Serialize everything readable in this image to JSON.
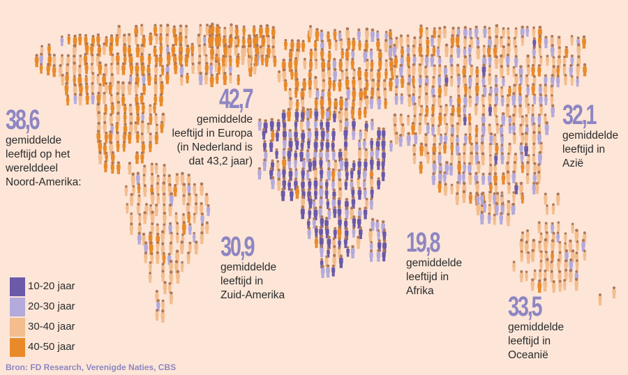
{
  "colors": {
    "background": "#fde6d8",
    "age_10_20": "#6a5aa8",
    "age_20_30": "#b4aadb",
    "age_30_40": "#f3bd8e",
    "age_40_50": "#e98a2a",
    "figure_number": "#8e86c2"
  },
  "regions": [
    {
      "id": "noord-amerika",
      "value": "38,6",
      "text": "gemiddelde\nleeftijd op het\nwerelddeel\nNoord-Amerika:"
    },
    {
      "id": "europa",
      "value": "42,7",
      "text": "gemiddelde\nleeftijd in Europa\n(in Nederland is\ndat 43,2 jaar)"
    },
    {
      "id": "azie",
      "value": "32,1",
      "text": "gemiddelde\nleeftijd in\nAzië"
    },
    {
      "id": "zuid-amerika",
      "value": "30,9",
      "text": "gemiddelde\nleeftijd in\nZuid-Amerika"
    },
    {
      "id": "afrika",
      "value": "19,8",
      "text": "gemiddelde\nleeftijd in\nAfrika"
    },
    {
      "id": "oceanie",
      "value": "33,5",
      "text": "gemiddelde\nleeftijd in\nOceanië"
    }
  ],
  "legend": [
    {
      "label": "10-20 jaar",
      "color": "#6a5aa8"
    },
    {
      "label": "20-30 jaar",
      "color": "#b4aadb"
    },
    {
      "label": "30-40 jaar",
      "color": "#f3bd8e"
    },
    {
      "label": "40-50 jaar",
      "color": "#e98a2a"
    }
  ],
  "source": "Bron: FD Research, Verenigde Naties, CBS"
}
